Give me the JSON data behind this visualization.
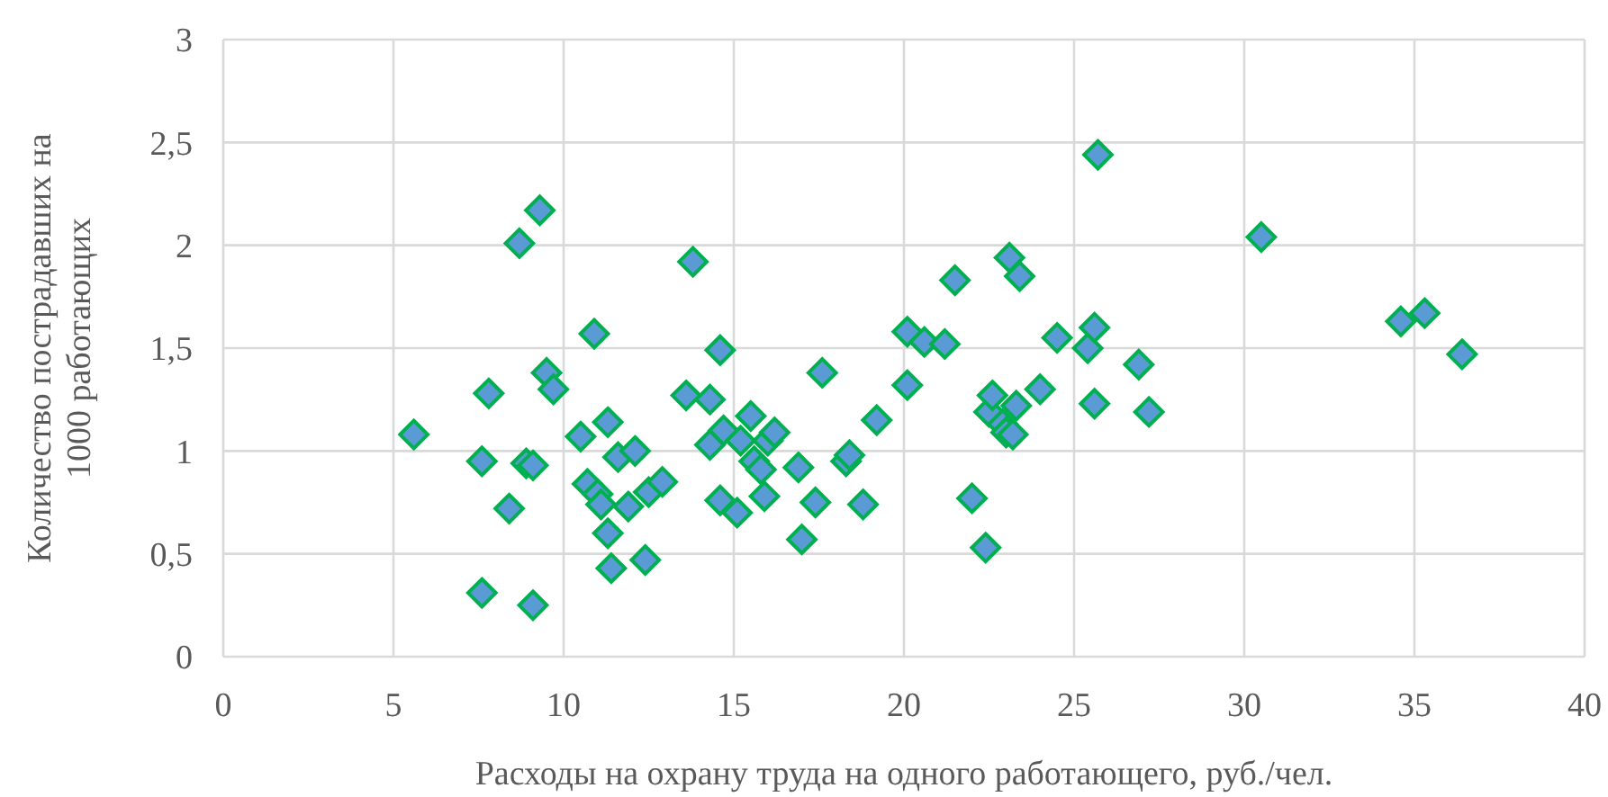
{
  "chart_data": {
    "type": "scatter",
    "xlabel": "Расходы на охрану труда на одного работающего, руб./чел.",
    "ylabel": "Количество пострадавших на\n1000 работающих",
    "xlim": [
      0,
      40
    ],
    "xticks": [
      0,
      5,
      10,
      15,
      20,
      25,
      30,
      35,
      40
    ],
    "ylim": [
      0,
      3
    ],
    "yticks": [
      0,
      {
        "value": 0.5,
        "label": "0,5"
      },
      1,
      {
        "value": 1.5,
        "label": "1,5"
      },
      2,
      {
        "value": 2.5,
        "label": "2,5"
      },
      3
    ],
    "grid": true,
    "marker": "diamond",
    "series": [
      {
        "color": "#5b9bd5",
        "x": [
          5.6,
          7.6,
          7.6,
          7.8,
          8.4,
          8.7,
          8.9,
          9.1,
          9.1,
          9.3,
          9.5,
          9.7,
          10.5,
          10.7,
          10.9,
          11.0,
          11.1,
          11.3,
          11.3,
          11.4,
          11.6,
          11.9,
          12.1,
          12.4,
          12.5,
          12.9,
          13.6,
          13.8,
          14.3,
          14.3,
          14.6,
          14.6,
          14.7,
          15.1,
          15.2,
          15.5,
          15.6,
          15.8,
          15.9,
          16.0,
          16.2,
          16.9,
          17.0,
          17.4,
          17.6,
          18.3,
          18.4,
          18.8,
          19.2,
          20.1,
          20.1,
          20.6,
          21.2,
          21.5,
          22.0,
          22.4,
          22.5,
          22.6,
          22.9,
          23.0,
          23.1,
          23.2,
          23.3,
          23.4,
          24.0,
          24.5,
          25.4,
          25.6,
          25.6,
          25.7,
          26.9,
          27.2,
          30.5,
          34.6,
          35.3,
          36.4
        ],
        "values": [
          1.08,
          0.95,
          0.31,
          1.28,
          0.72,
          2.01,
          0.94,
          0.93,
          0.25,
          2.17,
          1.38,
          1.3,
          1.07,
          0.84,
          1.57,
          0.79,
          0.74,
          0.6,
          1.14,
          0.43,
          0.97,
          0.73,
          1.0,
          0.47,
          0.8,
          0.85,
          1.27,
          1.92,
          1.25,
          1.03,
          1.49,
          0.76,
          1.1,
          0.7,
          1.05,
          1.17,
          0.95,
          0.91,
          0.78,
          1.05,
          1.09,
          0.92,
          0.57,
          0.75,
          1.38,
          0.95,
          0.98,
          0.74,
          1.15,
          1.58,
          1.32,
          1.53,
          1.52,
          1.83,
          0.77,
          0.53,
          1.19,
          1.27,
          1.13,
          1.09,
          1.94,
          1.08,
          1.22,
          1.85,
          1.3,
          1.55,
          1.5,
          1.6,
          1.23,
          2.44,
          1.42,
          1.19,
          2.04,
          1.63,
          1.67,
          1.47
        ]
      }
    ]
  }
}
